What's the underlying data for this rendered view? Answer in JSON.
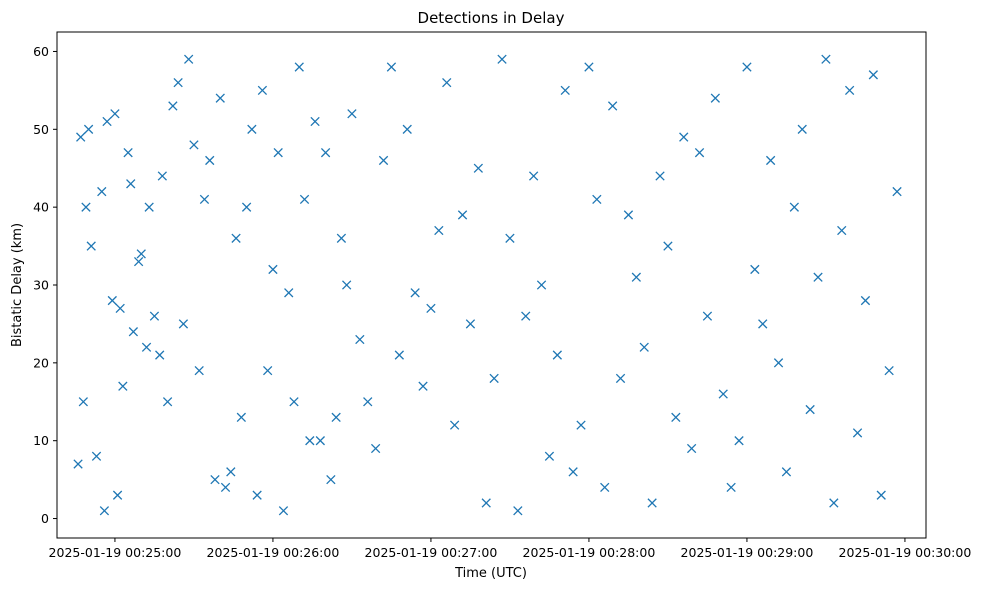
{
  "chart_data": {
    "type": "scatter",
    "title": "Detections in Delay",
    "xlabel": "Time (UTC)",
    "ylabel": "Bistatic Delay (km)",
    "x_ticks": [
      "2025-01-19 00:25:00",
      "2025-01-19 00:26:00",
      "2025-01-19 00:27:00",
      "2025-01-19 00:28:00",
      "2025-01-19 00:29:00",
      "2025-01-19 00:30:00"
    ],
    "y_ticks": [
      "0",
      "10",
      "20",
      "30",
      "40",
      "50",
      "60"
    ],
    "xlim": [
      "2025-01-19 00:24:38",
      "2025-01-19 00:30:08"
    ],
    "ylim": [
      -2.5,
      62.5
    ],
    "grid": false,
    "marker": "x",
    "color": "#1f77b4",
    "series": [
      {
        "x": [
          "2025-01-19 00:24:46",
          "2025-01-19 00:24:47",
          "2025-01-19 00:24:48",
          "2025-01-19 00:24:49",
          "2025-01-19 00:24:50",
          "2025-01-19 00:24:51",
          "2025-01-19 00:24:53",
          "2025-01-19 00:24:55",
          "2025-01-19 00:24:56",
          "2025-01-19 00:24:57",
          "2025-01-19 00:24:59",
          "2025-01-19 00:25:00",
          "2025-01-19 00:25:01",
          "2025-01-19 00:25:02",
          "2025-01-19 00:25:03",
          "2025-01-19 00:25:05",
          "2025-01-19 00:25:06",
          "2025-01-19 00:25:07",
          "2025-01-19 00:25:09",
          "2025-01-19 00:25:10",
          "2025-01-19 00:25:12",
          "2025-01-19 00:25:13",
          "2025-01-19 00:25:15",
          "2025-01-19 00:25:17",
          "2025-01-19 00:25:18",
          "2025-01-19 00:25:20",
          "2025-01-19 00:25:22",
          "2025-01-19 00:25:24",
          "2025-01-19 00:25:26",
          "2025-01-19 00:25:28",
          "2025-01-19 00:25:30",
          "2025-01-19 00:25:32",
          "2025-01-19 00:25:34",
          "2025-01-19 00:25:36",
          "2025-01-19 00:25:38",
          "2025-01-19 00:25:40",
          "2025-01-19 00:25:42",
          "2025-01-19 00:25:44",
          "2025-01-19 00:25:46",
          "2025-01-19 00:25:48",
          "2025-01-19 00:25:50",
          "2025-01-19 00:25:52",
          "2025-01-19 00:25:54",
          "2025-01-19 00:25:56",
          "2025-01-19 00:25:58",
          "2025-01-19 00:26:00",
          "2025-01-19 00:26:02",
          "2025-01-19 00:26:04",
          "2025-01-19 00:26:06",
          "2025-01-19 00:26:08",
          "2025-01-19 00:26:10",
          "2025-01-19 00:26:12",
          "2025-01-19 00:26:14",
          "2025-01-19 00:26:16",
          "2025-01-19 00:26:18",
          "2025-01-19 00:26:20",
          "2025-01-19 00:26:22",
          "2025-01-19 00:26:24",
          "2025-01-19 00:26:26",
          "2025-01-19 00:26:28",
          "2025-01-19 00:26:30",
          "2025-01-19 00:26:33",
          "2025-01-19 00:26:36",
          "2025-01-19 00:26:39",
          "2025-01-19 00:26:42",
          "2025-01-19 00:26:45",
          "2025-01-19 00:26:48",
          "2025-01-19 00:26:51",
          "2025-01-19 00:26:54",
          "2025-01-19 00:26:57",
          "2025-01-19 00:27:00",
          "2025-01-19 00:27:03",
          "2025-01-19 00:27:06",
          "2025-01-19 00:27:09",
          "2025-01-19 00:27:12",
          "2025-01-19 00:27:15",
          "2025-01-19 00:27:18",
          "2025-01-19 00:27:21",
          "2025-01-19 00:27:24",
          "2025-01-19 00:27:27",
          "2025-01-19 00:27:30",
          "2025-01-19 00:27:33",
          "2025-01-19 00:27:36",
          "2025-01-19 00:27:39",
          "2025-01-19 00:27:42",
          "2025-01-19 00:27:45",
          "2025-01-19 00:27:48",
          "2025-01-19 00:27:51",
          "2025-01-19 00:27:54",
          "2025-01-19 00:27:57",
          "2025-01-19 00:28:00",
          "2025-01-19 00:28:03",
          "2025-01-19 00:28:06",
          "2025-01-19 00:28:09",
          "2025-01-19 00:28:12",
          "2025-01-19 00:28:15",
          "2025-01-19 00:28:18",
          "2025-01-19 00:28:21",
          "2025-01-19 00:28:24",
          "2025-01-19 00:28:27",
          "2025-01-19 00:28:30",
          "2025-01-19 00:28:33",
          "2025-01-19 00:28:36",
          "2025-01-19 00:28:39",
          "2025-01-19 00:28:42",
          "2025-01-19 00:28:45",
          "2025-01-19 00:28:48",
          "2025-01-19 00:28:51",
          "2025-01-19 00:28:54",
          "2025-01-19 00:28:57",
          "2025-01-19 00:29:00",
          "2025-01-19 00:29:03",
          "2025-01-19 00:29:06",
          "2025-01-19 00:29:09",
          "2025-01-19 00:29:12",
          "2025-01-19 00:29:15",
          "2025-01-19 00:29:18",
          "2025-01-19 00:29:21",
          "2025-01-19 00:29:24",
          "2025-01-19 00:29:27",
          "2025-01-19 00:29:30",
          "2025-01-19 00:29:33",
          "2025-01-19 00:29:36",
          "2025-01-19 00:29:39",
          "2025-01-19 00:29:42",
          "2025-01-19 00:29:45",
          "2025-01-19 00:29:48",
          "2025-01-19 00:29:51",
          "2025-01-19 00:29:54",
          "2025-01-19 00:29:57"
        ],
        "y": [
          7,
          49,
          15,
          40,
          50,
          35,
          8,
          42,
          1,
          51,
          28,
          52,
          3,
          27,
          17,
          47,
          43,
          24,
          33,
          34,
          22,
          40,
          26,
          21,
          44,
          15,
          53,
          56,
          25,
          59,
          48,
          19,
          41,
          46,
          5,
          54,
          4,
          6,
          36,
          13,
          40,
          50,
          3,
          55,
          19,
          32,
          47,
          1,
          29,
          15,
          58,
          41,
          10,
          51,
          10,
          47,
          5,
          13,
          36,
          30,
          52,
          23,
          15,
          9,
          46,
          58,
          21,
          50,
          29,
          17,
          27,
          37,
          56,
          12,
          39,
          25,
          45,
          2,
          18,
          59,
          36,
          1,
          26,
          44,
          30,
          8,
          21,
          55,
          6,
          12,
          58,
          41,
          4,
          53,
          18,
          39,
          31,
          22,
          2,
          44,
          35,
          13,
          49,
          9,
          47,
          26,
          54,
          16,
          4,
          10,
          58,
          32,
          25,
          46,
          20,
          6,
          40,
          50,
          14,
          31,
          59,
          2,
          37,
          55,
          11,
          28,
          57,
          3,
          19,
          42
        ]
      }
    ]
  }
}
